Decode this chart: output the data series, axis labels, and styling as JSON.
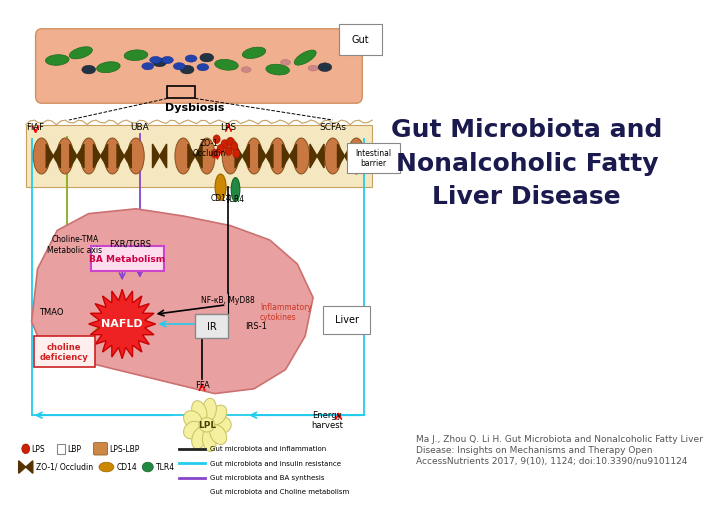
{
  "title_lines": [
    "Gut Microbiota and",
    "Nonalcoholic Fatty",
    "Liver Disease"
  ],
  "title_color": "#1a1a4e",
  "title_fontsize": 18,
  "citation_text": "Ma J., Zhou Q. Li H. Gut Microbiota and Nonalcoholic Fatty Liver\nDisease: Insights on Mechanisms and Therapy Open\nAccessNutrients 2017, 9(10), 1124; doi:10.3390/nu9101124",
  "citation_fontsize": 6.5,
  "citation_color": "#555555",
  "bg_color": "#ffffff",
  "gut_bg": "#f0b090",
  "ib_bg": "#f5e8c0",
  "liver_color": "#e8a0a0",
  "liver_edge": "#cc7070",
  "label_dysbiosis": "Dysbiosis",
  "label_gut": "Gut",
  "label_liver": "Liver",
  "label_intestinal_barrier": "Intestinal\nbarrier",
  "label_nafld": "NAFLD",
  "label_ba_metabolism": "BA Metabolism",
  "label_choline_deficiency": "choline\ndeficiency",
  "label_ir": "IR",
  "label_lpl": "LPL",
  "label_ffa": "FFA",
  "label_energy_harvest": "Energy\nharvest",
  "label_lps": "LPS",
  "label_scfas": "SCFAs",
  "label_fxr": "FXR/TGRS",
  "label_nfkb": "NF-κB, MyD88",
  "label_inflammatory": "Inflammatory\ncytokines",
  "label_cd14": "CD14",
  "label_tlr4": "TLR4",
  "label_zo1": "ZO-1\nOccludin",
  "label_uba": "UBA",
  "label_fiaf": "FIAF",
  "label_tmao": "TMAO",
  "label_choline_tma": "Choline-TMA\nMetabolic axis",
  "label_irs1": "IRS-1",
  "legend_lines": [
    {
      "color": "#222222",
      "label": "Gut microbiota and inflammation"
    },
    {
      "color": "#22ccee",
      "label": "Gut microbiota and insulin resistance"
    },
    {
      "color": "#8844cc",
      "label": "Gut microbiota and BA synthesis"
    },
    {
      "color": "#88aa22",
      "label": "Gut microbiota and Choline metabolism"
    }
  ]
}
